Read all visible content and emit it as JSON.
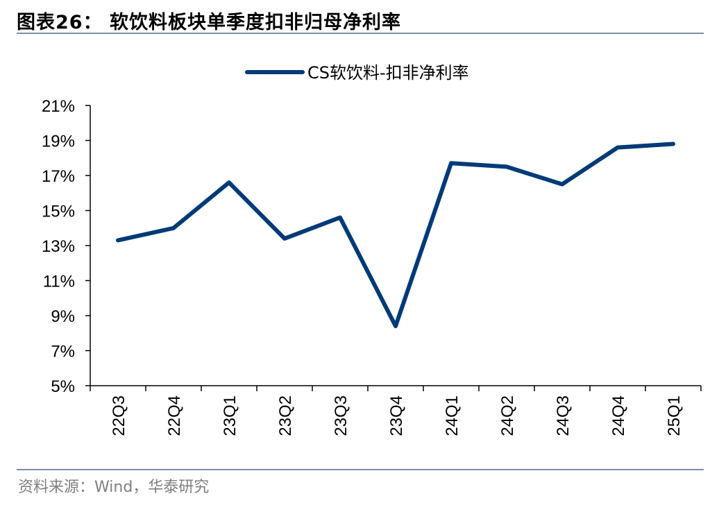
{
  "header": {
    "title": "图表26：  软饮料板块单季度扣非归母净利率"
  },
  "footer": {
    "source": "资料来源：Wind，华泰研究"
  },
  "colors": {
    "series": "#003a78",
    "rule": "#7a8ea6"
  },
  "chart_data": {
    "type": "line",
    "categories": [
      "22Q3",
      "22Q4",
      "23Q1",
      "23Q2",
      "23Q3",
      "23Q4",
      "24Q1",
      "24Q2",
      "24Q3",
      "24Q4",
      "25Q1"
    ],
    "series": [
      {
        "name": "CS软饮料-扣非净利率",
        "values": [
          13.3,
          14.0,
          16.6,
          13.4,
          14.6,
          8.4,
          17.7,
          17.5,
          16.5,
          18.6,
          18.8
        ]
      }
    ],
    "yticks": [
      "21%",
      "19%",
      "17%",
      "15%",
      "13%",
      "11%",
      "9%",
      "7%",
      "5%"
    ],
    "ylim": [
      5,
      21
    ],
    "ytick_values": [
      21,
      19,
      17,
      15,
      13,
      11,
      9,
      7,
      5
    ],
    "legend_position": "top-center",
    "grid": false
  }
}
